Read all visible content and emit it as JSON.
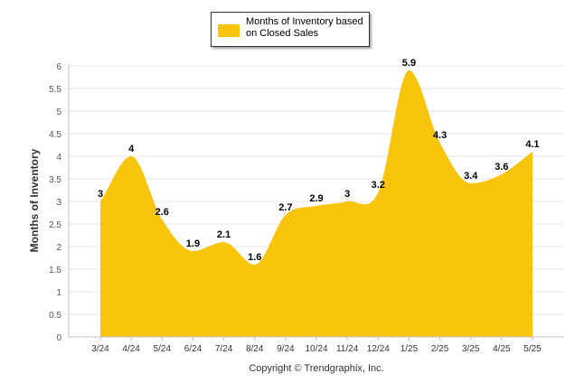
{
  "chart_data": {
    "type": "area",
    "title": "",
    "xlabel": "",
    "ylabel": "Months of Inventory",
    "categories": [
      "3/24",
      "4/24",
      "5/24",
      "6/24",
      "7/24",
      "8/24",
      "9/24",
      "10/24",
      "11/24",
      "12/24",
      "1/25",
      "2/25",
      "3/25",
      "4/25",
      "5/25"
    ],
    "series": [
      {
        "name": "Months of Inventory based on Closed Sales",
        "values": [
          3,
          4,
          2.6,
          1.9,
          2.1,
          1.6,
          2.7,
          2.9,
          3,
          3.2,
          5.9,
          4.3,
          3.4,
          3.6,
          4.1
        ],
        "color": "#F9C40C"
      }
    ],
    "ylim": [
      0,
      6
    ],
    "yticks": [
      "0",
      "0.5",
      "1",
      "1.5",
      "2",
      "2.5",
      "3",
      "3.5",
      "4",
      "4.5",
      "5",
      "5.5",
      "6"
    ],
    "grid": true,
    "legend_position": "top-center"
  },
  "legend": {
    "label": "Months of Inventory based on Closed Sales"
  },
  "footer": {
    "copyright": "Copyright © Trendgraphix, Inc."
  }
}
